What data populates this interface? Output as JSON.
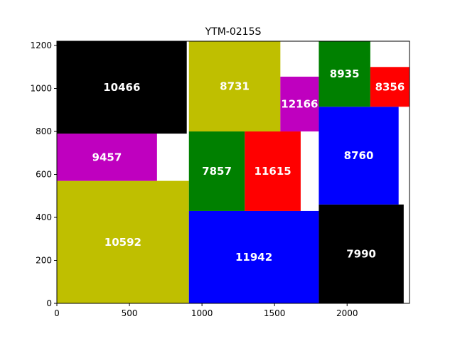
{
  "chart_data": {
    "type": "treemap",
    "title": "YTM-0215S",
    "xlim": [
      0,
      2430
    ],
    "ylim": [
      0,
      1220
    ],
    "xticks": [
      0,
      500,
      1000,
      1500,
      2000
    ],
    "yticks": [
      0,
      200,
      400,
      600,
      800,
      1000,
      1200
    ],
    "grid": false,
    "colors": {
      "black": "#000000",
      "olive": "#bfbf00",
      "magenta": "#bf00bf",
      "green": "#008000",
      "red": "#ff0000",
      "blue": "#0000ff"
    },
    "rects": [
      {
        "label": "10592",
        "x": 0,
        "y": 0,
        "w": 910,
        "h": 570,
        "color": "olive"
      },
      {
        "label": "9457",
        "x": 0,
        "y": 570,
        "w": 690,
        "h": 220,
        "color": "magenta"
      },
      {
        "label": "10466",
        "x": 0,
        "y": 790,
        "w": 895,
        "h": 430,
        "color": "black"
      },
      {
        "label": "11942",
        "x": 910,
        "y": 0,
        "w": 895,
        "h": 430,
        "color": "blue"
      },
      {
        "label": "7857",
        "x": 910,
        "y": 430,
        "w": 385,
        "h": 370,
        "color": "green"
      },
      {
        "label": "11615",
        "x": 1295,
        "y": 430,
        "w": 385,
        "h": 370,
        "color": "red"
      },
      {
        "label": "8731",
        "x": 910,
        "y": 800,
        "w": 630,
        "h": 420,
        "color": "olive"
      },
      {
        "label": "12166",
        "x": 1540,
        "y": 800,
        "w": 265,
        "h": 255,
        "color": "magenta"
      },
      {
        "label": "7990",
        "x": 1805,
        "y": 0,
        "w": 585,
        "h": 460,
        "color": "black"
      },
      {
        "label": "8760",
        "x": 1805,
        "y": 460,
        "w": 550,
        "h": 455,
        "color": "blue"
      },
      {
        "label": "8935",
        "x": 1805,
        "y": 915,
        "w": 355,
        "h": 305,
        "color": "green"
      },
      {
        "label": "8356",
        "x": 2160,
        "y": 915,
        "w": 270,
        "h": 185,
        "color": "red"
      }
    ]
  }
}
